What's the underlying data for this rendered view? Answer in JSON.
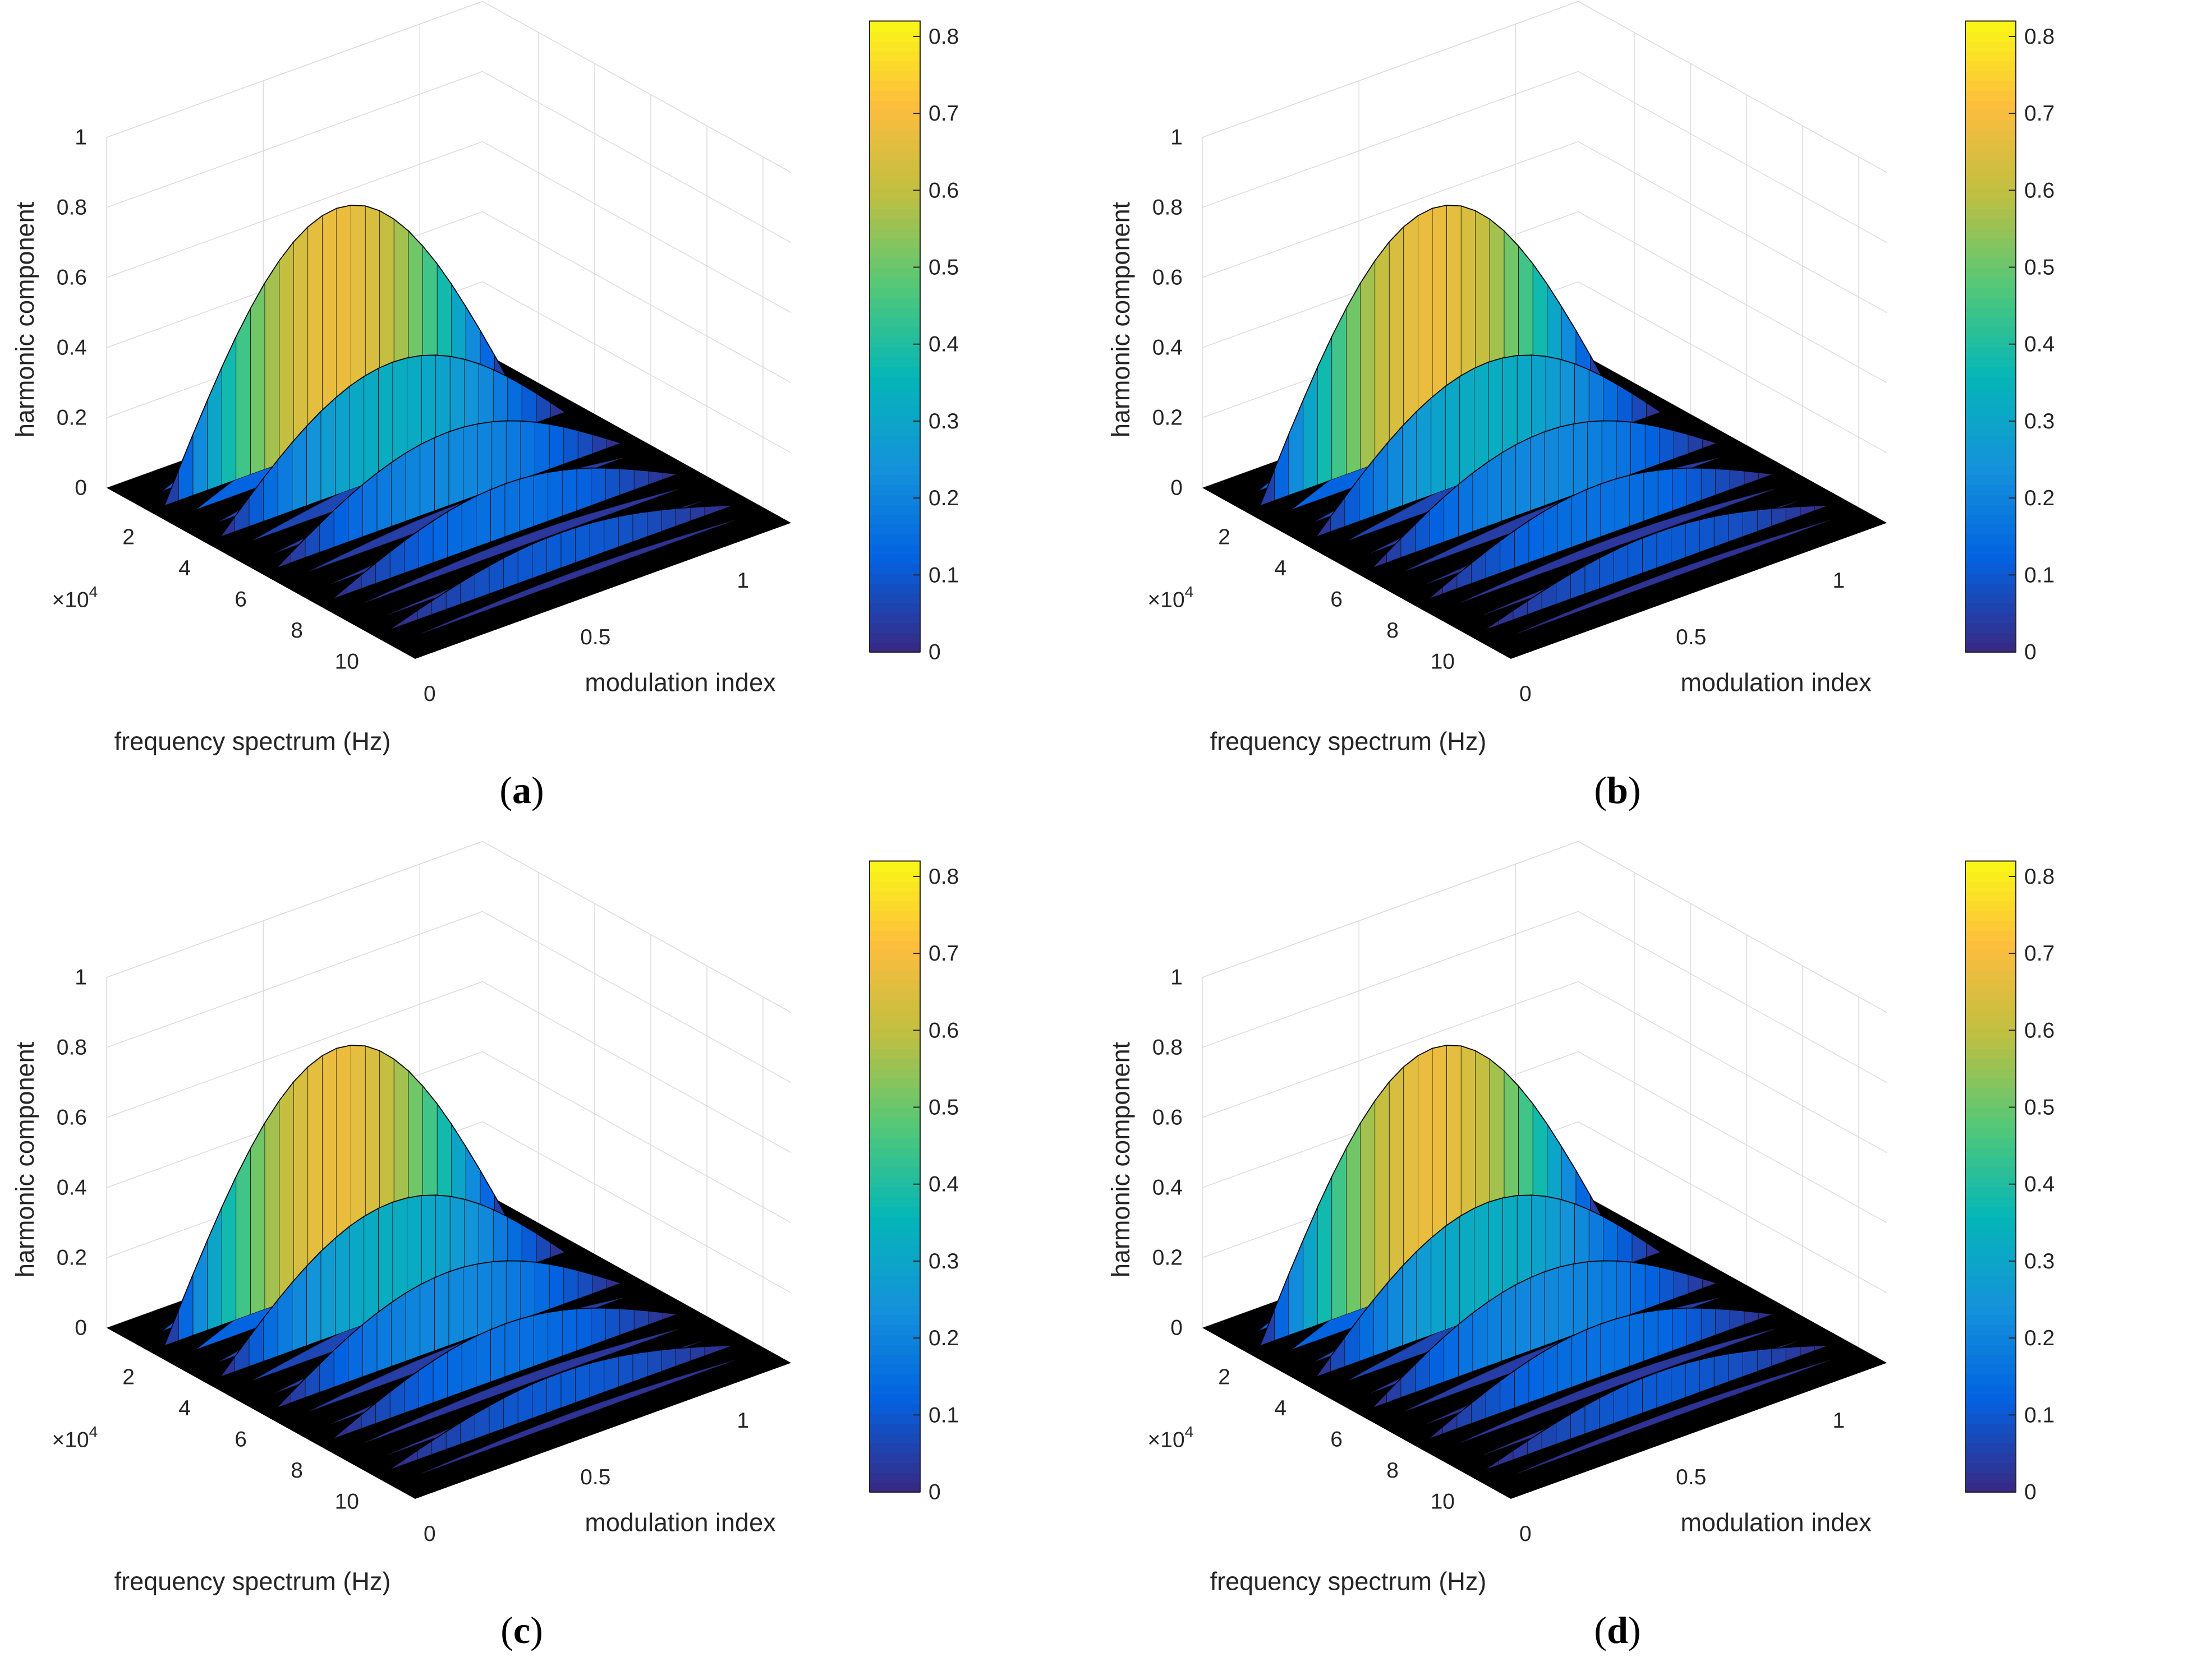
{
  "chart_data": [
    {
      "type": "surface3d",
      "panel_label": "a",
      "xlabel": "frequency spectrum (Hz)",
      "ylabel": "modulation index",
      "zlabel": "harmonic component",
      "x_exponent": "×10",
      "x_exponent_power": "4",
      "x_ticks": [
        "2",
        "4",
        "6",
        "8",
        "10"
      ],
      "y_ticks": [
        "0",
        "0.5",
        "1"
      ],
      "z_ticks": [
        "0",
        "0.2",
        "0.4",
        "0.6",
        "0.8",
        "1"
      ],
      "zlim": [
        0,
        1
      ],
      "xlim": [
        0,
        11
      ],
      "ylim": [
        0,
        1.2
      ],
      "colorbar": {
        "ticks": [
          "0",
          "0.1",
          "0.2",
          "0.3",
          "0.4",
          "0.5",
          "0.6",
          "0.7",
          "0.8"
        ],
        "range": [
          0,
          0.82
        ],
        "colormap": "parula"
      },
      "harmonics": [
        {
          "freq_x1e4": 1.5,
          "peak": 0.67
        },
        {
          "freq_x1e4": 3.5,
          "peak": 0.32
        },
        {
          "freq_x1e4": 5.5,
          "peak": 0.21
        },
        {
          "freq_x1e4": 7.5,
          "peak": 0.15
        },
        {
          "freq_x1e4": 9.5,
          "peak": 0.1
        }
      ]
    },
    {
      "type": "surface3d",
      "panel_label": "b",
      "xlabel": "frequency spectrum (Hz)",
      "ylabel": "modulation index",
      "zlabel": "harmonic component",
      "x_exponent": "×10",
      "x_exponent_power": "4",
      "x_ticks": [
        "2",
        "4",
        "6",
        "8",
        "10"
      ],
      "y_ticks": [
        "0",
        "0.5",
        "1"
      ],
      "z_ticks": [
        "0",
        "0.2",
        "0.4",
        "0.6",
        "0.8",
        "1"
      ],
      "zlim": [
        0,
        1
      ],
      "xlim": [
        0,
        11
      ],
      "ylim": [
        0,
        1.2
      ],
      "colorbar": {
        "ticks": [
          "0",
          "0.1",
          "0.2",
          "0.3",
          "0.4",
          "0.5",
          "0.6",
          "0.7",
          "0.8"
        ],
        "range": [
          0,
          0.82
        ],
        "colormap": "parula"
      },
      "harmonics": [
        {
          "freq_x1e4": 1.5,
          "peak": 0.67
        },
        {
          "freq_x1e4": 3.5,
          "peak": 0.32
        },
        {
          "freq_x1e4": 5.5,
          "peak": 0.21
        },
        {
          "freq_x1e4": 7.5,
          "peak": 0.15
        },
        {
          "freq_x1e4": 9.5,
          "peak": 0.1
        }
      ]
    },
    {
      "type": "surface3d",
      "panel_label": "c",
      "xlabel": "frequency spectrum (Hz)",
      "ylabel": "modulation index",
      "zlabel": "harmonic component",
      "x_exponent": "×10",
      "x_exponent_power": "4",
      "x_ticks": [
        "2",
        "4",
        "6",
        "8",
        "10"
      ],
      "y_ticks": [
        "0",
        "0.5",
        "1"
      ],
      "z_ticks": [
        "0",
        "0.2",
        "0.4",
        "0.6",
        "0.8",
        "1"
      ],
      "zlim": [
        0,
        1
      ],
      "xlim": [
        0,
        11
      ],
      "ylim": [
        0,
        1.2
      ],
      "colorbar": {
        "ticks": [
          "0",
          "0.1",
          "0.2",
          "0.3",
          "0.4",
          "0.5",
          "0.6",
          "0.7",
          "0.8"
        ],
        "range": [
          0,
          0.82
        ],
        "colormap": "parula"
      },
      "harmonics": [
        {
          "freq_x1e4": 1.5,
          "peak": 0.67
        },
        {
          "freq_x1e4": 3.5,
          "peak": 0.32
        },
        {
          "freq_x1e4": 5.5,
          "peak": 0.21
        },
        {
          "freq_x1e4": 7.5,
          "peak": 0.15
        },
        {
          "freq_x1e4": 9.5,
          "peak": 0.1
        }
      ]
    },
    {
      "type": "surface3d",
      "panel_label": "d",
      "xlabel": "frequency spectrum (Hz)",
      "ylabel": "modulation index",
      "zlabel": "harmonic component",
      "x_exponent": "×10",
      "x_exponent_power": "4",
      "x_ticks": [
        "2",
        "4",
        "6",
        "8",
        "10"
      ],
      "y_ticks": [
        "0",
        "0.5",
        "1"
      ],
      "z_ticks": [
        "0",
        "0.2",
        "0.4",
        "0.6",
        "0.8",
        "1"
      ],
      "zlim": [
        0,
        1
      ],
      "xlim": [
        0,
        11
      ],
      "ylim": [
        0,
        1.2
      ],
      "colorbar": {
        "ticks": [
          "0",
          "0.1",
          "0.2",
          "0.3",
          "0.4",
          "0.5",
          "0.6",
          "0.7",
          "0.8"
        ],
        "range": [
          0,
          0.82
        ],
        "colormap": "parula"
      },
      "harmonics": [
        {
          "freq_x1e4": 1.5,
          "peak": 0.67
        },
        {
          "freq_x1e4": 3.5,
          "peak": 0.32
        },
        {
          "freq_x1e4": 5.5,
          "peak": 0.21
        },
        {
          "freq_x1e4": 7.5,
          "peak": 0.15
        },
        {
          "freq_x1e4": 9.5,
          "peak": 0.1
        }
      ]
    }
  ]
}
